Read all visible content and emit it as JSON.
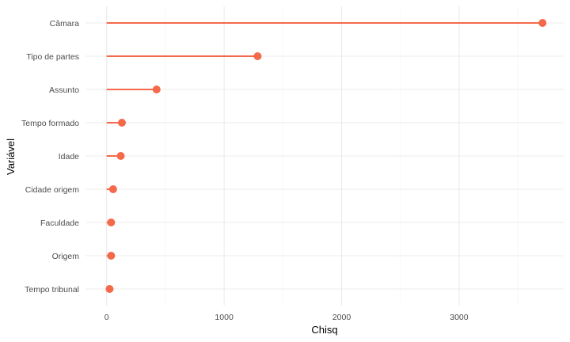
{
  "chart_data": {
    "type": "lollipop",
    "title": "",
    "xlabel": "Chisq",
    "ylabel": "Variável",
    "xlim": [
      -180,
      3890
    ],
    "x_ticks": [
      0,
      1000,
      2000,
      3000
    ],
    "x_tick_labels": [
      "0",
      "1000",
      "2000",
      "3000"
    ],
    "grid": true,
    "color": "#f4694a",
    "categories": [
      "Câmara",
      "Tipo de partes",
      "Assunto",
      "Tempo formado",
      "Idade",
      "Cidade origem",
      "Faculdade",
      "Origem",
      "Tempo tribunal"
    ],
    "values": [
      3710,
      1285,
      425,
      130,
      120,
      55,
      38,
      38,
      25
    ]
  }
}
